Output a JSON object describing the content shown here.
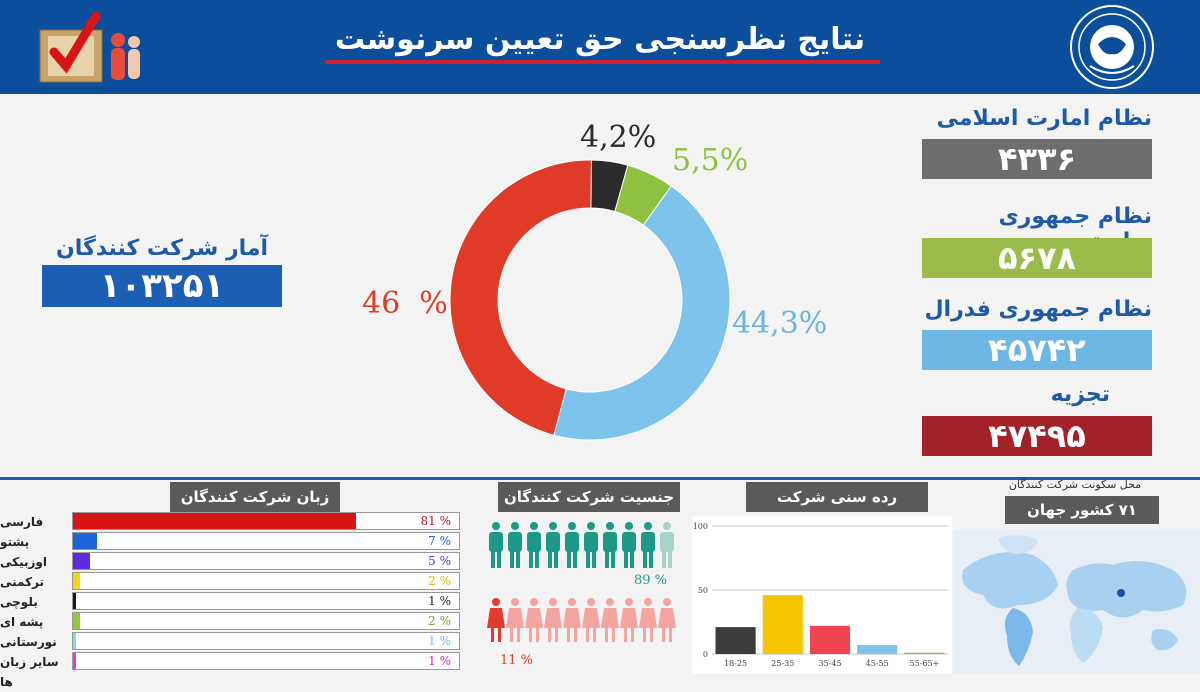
{
  "header": {
    "title": "نتایج نظرسنجی حق تعیین سرنوشت"
  },
  "participants": {
    "label": "آمار شرکت کنندگان",
    "value": "۱۰۳۲۵۱"
  },
  "results": [
    {
      "label": "نظام امارت اسلامی",
      "value": "۴۳۳۶",
      "color": "#6d6d6d"
    },
    {
      "label": "نظام جمهوری ریاستی",
      "value": "۵۶۷۸",
      "color": "#9bbb4a"
    },
    {
      "label": "نظام جمهوری فدرال",
      "value": "۴۵۷۴۲",
      "color": "#6cb7e4"
    },
    {
      "label": "تجزیه",
      "value": "۴۷۴۹۵",
      "color": "#a3222a"
    }
  ],
  "chart_data": [
    {
      "type": "pie",
      "categories": [
        "نظام امارت اسلامی",
        "نظام جمهوری ریاستی",
        "نظام جمهوری فدرال",
        "تجزیه"
      ],
      "values": [
        4.2,
        5.5,
        44.3,
        46
      ],
      "labels": [
        "4,2%",
        "5,5%",
        "44,3%",
        "46  %"
      ],
      "colors": [
        "#2b2b2b",
        "#8ec13f",
        "#7ec3ec",
        "#e03a28"
      ],
      "label_colors": [
        "#2b2b2b",
        "#8ec13f",
        "#6ab4e6",
        "#e03a28"
      ]
    },
    {
      "type": "bar",
      "title": "زبان شرکت کنندگان",
      "categories": [
        "فارسی",
        "پشتو",
        "اوزبیکی",
        "ترکمنی",
        "بلوچی",
        "پشه ای",
        "نورستانی",
        "سایر زبان ها"
      ],
      "values": [
        81,
        7,
        5,
        2,
        1,
        2,
        1,
        1
      ],
      "labels": [
        "81 %",
        "7 %",
        "5 %",
        "2 %",
        "1 %",
        "2 %",
        "1 %",
        "1 %"
      ],
      "colors": [
        "#d81414",
        "#1c64d8",
        "#5b2be0",
        "#f3d31c",
        "#1a1a1a",
        "#92c83a",
        "#8fd3f0",
        "#e23ad7"
      ],
      "label_colors": [
        "#b3151d",
        "#1c64d8",
        "#5b2be0",
        "#d6b800",
        "#222222",
        "#7aa52f",
        "#74c3e8",
        "#c82ac0"
      ]
    },
    {
      "type": "pictograph",
      "title": "جنسیت شرکت کنندگان",
      "categories": [
        "male",
        "female"
      ],
      "values": [
        89,
        11
      ],
      "labels": [
        "89 %",
        "11 %"
      ],
      "colors": [
        "#1d9a86",
        "#e23b2f"
      ]
    },
    {
      "type": "bar",
      "title": "رده سنی شرکت کنندگان",
      "categories": [
        "18-25",
        "25-35",
        "35-45",
        "45-55",
        "55-65+"
      ],
      "values": [
        21,
        46,
        22,
        7,
        1
      ],
      "colors": [
        "#3c3c3c",
        "#f7c500",
        "#ef4452",
        "#7ec3ec",
        "#8ec13f"
      ],
      "yticks": [
        "0",
        "50",
        "100"
      ],
      "ylim": [
        0,
        100
      ],
      "grid": true
    }
  ],
  "location": {
    "title": "محل سکونت شرکت کنندگان",
    "value": "۷۱ کشور جهان"
  },
  "icons": [
    "ballot-box-icon",
    "party-seal-icon",
    "male-person-icon",
    "female-person-icon",
    "world-map"
  ]
}
